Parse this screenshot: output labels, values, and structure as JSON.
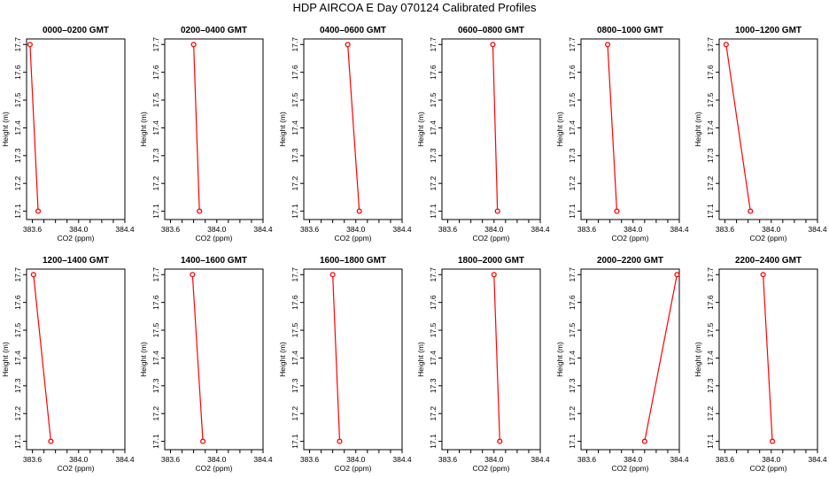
{
  "title": "HDP  AIRCOA E  Day 070124  Calibrated Profiles",
  "colors": {
    "line": "#ff0000",
    "marker": "#ff0000",
    "axis": "#000000"
  },
  "chart_data": [
    {
      "type": "line",
      "title": "0000–0200 GMT",
      "xlabel": "CO2 (ppm)",
      "ylabel": "Height (m)",
      "xlim": [
        383.55,
        384.4
      ],
      "ylim": [
        17.07,
        17.72
      ],
      "xticks": [
        "383.6",
        "384.0",
        "384.4"
      ],
      "yticks": [
        "17.1",
        "17.2",
        "17.3",
        "17.4",
        "17.5",
        "17.6",
        "17.7"
      ],
      "series": [
        {
          "x": [
            383.58,
            383.65
          ],
          "y": [
            17.7,
            17.1
          ]
        }
      ]
    },
    {
      "type": "line",
      "title": "0200–0400 GMT",
      "xlabel": "CO2 (ppm)",
      "ylabel": "Height (m)",
      "xlim": [
        383.55,
        384.4
      ],
      "ylim": [
        17.07,
        17.72
      ],
      "xticks": [
        "383.6",
        "384.0",
        "384.4"
      ],
      "yticks": [
        "17.1",
        "17.2",
        "17.3",
        "17.4",
        "17.5",
        "17.6",
        "17.7"
      ],
      "series": [
        {
          "x": [
            383.8,
            383.85
          ],
          "y": [
            17.7,
            17.1
          ]
        }
      ]
    },
    {
      "type": "line",
      "title": "0400–0600 GMT",
      "xlabel": "CO2 (ppm)",
      "ylabel": "Height (m)",
      "xlim": [
        383.55,
        384.4
      ],
      "ylim": [
        17.07,
        17.72
      ],
      "xticks": [
        "383.6",
        "384.0",
        "384.4"
      ],
      "yticks": [
        "17.1",
        "17.2",
        "17.3",
        "17.4",
        "17.5",
        "17.6",
        "17.7"
      ],
      "series": [
        {
          "x": [
            383.93,
            384.03
          ],
          "y": [
            17.7,
            17.1
          ]
        }
      ]
    },
    {
      "type": "line",
      "title": "0600–0800 GMT",
      "xlabel": "CO2 (ppm)",
      "ylabel": "Height (m)",
      "xlim": [
        383.55,
        384.4
      ],
      "ylim": [
        17.07,
        17.72
      ],
      "xticks": [
        "383.6",
        "384.0",
        "384.4"
      ],
      "yticks": [
        "17.1",
        "17.2",
        "17.3",
        "17.4",
        "17.5",
        "17.6",
        "17.7"
      ],
      "series": [
        {
          "x": [
            383.99,
            384.03
          ],
          "y": [
            17.7,
            17.1
          ]
        }
      ]
    },
    {
      "type": "line",
      "title": "0800–1000 GMT",
      "xlabel": "CO2 (ppm)",
      "ylabel": "Height (m)",
      "xlim": [
        383.55,
        384.4
      ],
      "ylim": [
        17.07,
        17.72
      ],
      "xticks": [
        "383.6",
        "384.0",
        "384.4"
      ],
      "yticks": [
        "17.1",
        "17.2",
        "17.3",
        "17.4",
        "17.5",
        "17.6",
        "17.7"
      ],
      "series": [
        {
          "x": [
            383.78,
            383.86
          ],
          "y": [
            17.7,
            17.1
          ]
        }
      ]
    },
    {
      "type": "line",
      "title": "1000–1200 GMT",
      "xlabel": "CO2 (ppm)",
      "ylabel": "Height (m)",
      "xlim": [
        383.55,
        384.4
      ],
      "ylim": [
        17.07,
        17.72
      ],
      "xticks": [
        "383.6",
        "384.0",
        "384.4"
      ],
      "yticks": [
        "17.1",
        "17.2",
        "17.3",
        "17.4",
        "17.5",
        "17.6",
        "17.7"
      ],
      "series": [
        {
          "x": [
            383.61,
            383.82
          ],
          "y": [
            17.7,
            17.1
          ]
        }
      ]
    },
    {
      "type": "line",
      "title": "1200–1400 GMT",
      "xlabel": "CO2 (ppm)",
      "ylabel": "Height (m)",
      "xlim": [
        383.55,
        384.4
      ],
      "ylim": [
        17.07,
        17.72
      ],
      "xticks": [
        "383.6",
        "384.0",
        "384.4"
      ],
      "yticks": [
        "17.1",
        "17.2",
        "17.3",
        "17.4",
        "17.5",
        "17.6",
        "17.7"
      ],
      "series": [
        {
          "x": [
            383.61,
            383.76
          ],
          "y": [
            17.7,
            17.1
          ]
        }
      ]
    },
    {
      "type": "line",
      "title": "1400–1600 GMT",
      "xlabel": "CO2 (ppm)",
      "ylabel": "Height (m)",
      "xlim": [
        383.55,
        384.4
      ],
      "ylim": [
        17.07,
        17.72
      ],
      "xticks": [
        "383.6",
        "384.0",
        "384.4"
      ],
      "yticks": [
        "17.1",
        "17.2",
        "17.3",
        "17.4",
        "17.5",
        "17.6",
        "17.7"
      ],
      "series": [
        {
          "x": [
            383.79,
            383.88
          ],
          "y": [
            17.7,
            17.1
          ]
        }
      ]
    },
    {
      "type": "line",
      "title": "1600–1800 GMT",
      "xlabel": "CO2 (ppm)",
      "ylabel": "Height (m)",
      "xlim": [
        383.55,
        384.4
      ],
      "ylim": [
        17.07,
        17.72
      ],
      "xticks": [
        "383.6",
        "384.0",
        "384.4"
      ],
      "yticks": [
        "17.1",
        "17.2",
        "17.3",
        "17.4",
        "17.5",
        "17.6",
        "17.7"
      ],
      "series": [
        {
          "x": [
            383.8,
            383.86
          ],
          "y": [
            17.7,
            17.1
          ]
        }
      ]
    },
    {
      "type": "line",
      "title": "1800–2000 GMT",
      "xlabel": "CO2 (ppm)",
      "ylabel": "Height (m)",
      "xlim": [
        383.55,
        384.4
      ],
      "ylim": [
        17.07,
        17.72
      ],
      "xticks": [
        "383.6",
        "384.0",
        "384.4"
      ],
      "yticks": [
        "17.1",
        "17.2",
        "17.3",
        "17.4",
        "17.5",
        "17.6",
        "17.7"
      ],
      "series": [
        {
          "x": [
            384.0,
            384.05
          ],
          "y": [
            17.7,
            17.1
          ]
        }
      ]
    },
    {
      "type": "line",
      "title": "2000–2200 GMT",
      "xlabel": "CO2 (ppm)",
      "ylabel": "Height (m)",
      "xlim": [
        383.55,
        384.4
      ],
      "ylim": [
        17.07,
        17.72
      ],
      "xticks": [
        "383.6",
        "384.0",
        "384.4"
      ],
      "yticks": [
        "17.1",
        "17.2",
        "17.3",
        "17.4",
        "17.5",
        "17.6",
        "17.7"
      ],
      "series": [
        {
          "x": [
            384.38,
            384.1
          ],
          "y": [
            17.7,
            17.1
          ]
        }
      ]
    },
    {
      "type": "line",
      "title": "2200–2400 GMT",
      "xlabel": "CO2 (ppm)",
      "ylabel": "Height (m)",
      "xlim": [
        383.55,
        384.4
      ],
      "ylim": [
        17.07,
        17.72
      ],
      "xticks": [
        "383.6",
        "384.0",
        "384.4"
      ],
      "yticks": [
        "17.1",
        "17.2",
        "17.3",
        "17.4",
        "17.5",
        "17.6",
        "17.7"
      ],
      "series": [
        {
          "x": [
            383.93,
            384.01
          ],
          "y": [
            17.7,
            17.1
          ]
        }
      ]
    }
  ]
}
